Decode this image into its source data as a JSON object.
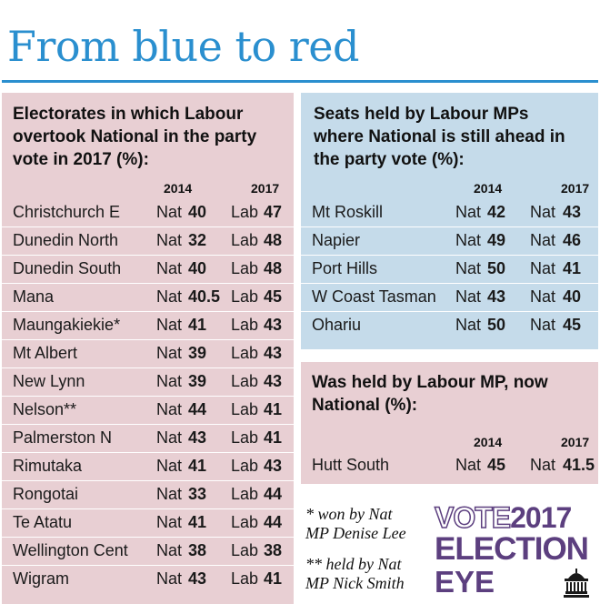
{
  "title": "From blue to red",
  "left_panel": {
    "heading": [
      "Electorates in which Labour",
      "overtook National in the party",
      "vote in 2017 (%):"
    ],
    "col_2014": "2014",
    "col_2017": "2017",
    "rows": [
      {
        "name": "Christchurch E",
        "p1": "Nat",
        "v1": "40",
        "p2": "Lab",
        "v2": "47"
      },
      {
        "name": "Dunedin North",
        "p1": "Nat",
        "v1": "32",
        "p2": "Lab",
        "v2": "48"
      },
      {
        "name": "Dunedin South",
        "p1": "Nat",
        "v1": "40",
        "p2": "Lab",
        "v2": "48"
      },
      {
        "name": "Mana",
        "p1": "Nat",
        "v1": "40.5",
        "p2": "Lab",
        "v2": "45"
      },
      {
        "name": "Maungakiekie*",
        "p1": "Nat",
        "v1": "41",
        "p2": "Lab",
        "v2": "43"
      },
      {
        "name": "Mt Albert",
        "p1": "Nat",
        "v1": "39",
        "p2": "Lab",
        "v2": "43"
      },
      {
        "name": "New Lynn",
        "p1": "Nat",
        "v1": "39",
        "p2": "Lab",
        "v2": "43"
      },
      {
        "name": "Nelson**",
        "p1": "Nat",
        "v1": "44",
        "p2": "Lab",
        "v2": "41"
      },
      {
        "name": "Palmerston N",
        "p1": "Nat",
        "v1": "43",
        "p2": "Lab",
        "v2": "41"
      },
      {
        "name": "Rimutaka",
        "p1": "Nat",
        "v1": "41",
        "p2": "Lab",
        "v2": "43"
      },
      {
        "name": "Rongotai",
        "p1": "Nat",
        "v1": "33",
        "p2": "Lab",
        "v2": "44"
      },
      {
        "name": "Te Atatu",
        "p1": "Nat",
        "v1": "41",
        "p2": "Lab",
        "v2": "44"
      },
      {
        "name": "Wellington Cent",
        "p1": "Nat",
        "v1": "38",
        "p2": "Lab",
        "v2": "38"
      },
      {
        "name": "Wigram",
        "p1": "Nat",
        "v1": "43",
        "p2": "Lab",
        "v2": "41"
      }
    ]
  },
  "right_top_panel": {
    "heading": [
      "Seats held by Labour MPs",
      "where National is still ahead in",
      "the party vote (%):"
    ],
    "col_2014": "2014",
    "col_2017": "2017",
    "rows": [
      {
        "name": "Mt Roskill",
        "p1": "Nat",
        "v1": "42",
        "p2": "Nat",
        "v2": "43"
      },
      {
        "name": "Napier",
        "p1": "Nat",
        "v1": "49",
        "p2": "Nat",
        "v2": "46"
      },
      {
        "name": "Port Hills",
        "p1": "Nat",
        "v1": "50",
        "p2": "Nat",
        "v2": "41"
      },
      {
        "name": "W Coast Tasman",
        "p1": "Nat",
        "v1": "43",
        "p2": "Nat",
        "v2": "40"
      },
      {
        "name": "Ohariu",
        "p1": "Nat",
        "v1": "50",
        "p2": "Nat",
        "v2": "45"
      }
    ]
  },
  "right_mid_panel": {
    "heading": [
      "Was held by Labour MP, now",
      "National (%):"
    ],
    "col_2014": "2014",
    "col_2017": "2017",
    "rows": [
      {
        "name": "Hutt South",
        "p1": "Nat",
        "v1": "45",
        "p2": "Nat",
        "v2": "41.5"
      }
    ]
  },
  "footnotes": {
    "note1": [
      "* won by Nat",
      "MP Denise Lee"
    ],
    "note2": [
      "** held by Nat",
      "MP Nick Smith"
    ]
  },
  "logo": {
    "vote": "VOTE",
    "year": "2017",
    "line2": "ELECTION",
    "line3": "EYE",
    "icon": "parliament-building-icon",
    "color": "#5c3f7f"
  },
  "colors": {
    "title_blue": "#2a8fcf",
    "panel_pink": "#e8cfd3",
    "panel_blue": "#c5dbea"
  }
}
